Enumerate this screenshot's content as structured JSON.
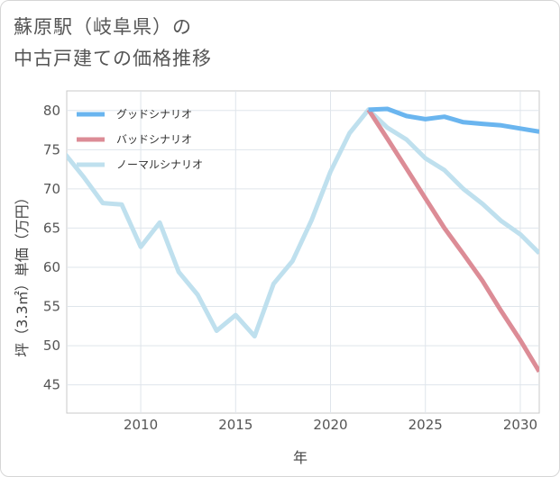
{
  "title": {
    "line1": "蘇原駅（岐阜県）の",
    "line2": "中古戸建ての価格推移"
  },
  "chart_data": {
    "type": "line",
    "title": "蘇原駅（岐阜県）の中古戸建ての価格推移",
    "xlabel": "年",
    "ylabel": "坪（3.3㎡）単価（万円）",
    "xlim": [
      2006.1,
      2031
    ],
    "ylim": [
      41.4,
      82.5
    ],
    "xticks": [
      2010,
      2015,
      2020,
      2025,
      2030
    ],
    "yticks": [
      45,
      50,
      55,
      60,
      65,
      70,
      75,
      80
    ],
    "grid": true,
    "legend_position": "top-left",
    "series": [
      {
        "name": "グッドシナリオ",
        "color": "#6ab5ef",
        "x": [
          2022,
          2023,
          2024,
          2025,
          2026,
          2027,
          2028,
          2029,
          2030,
          2031
        ],
        "values": [
          80.1,
          80.2,
          79.3,
          78.9,
          79.2,
          78.5,
          78.3,
          78.1,
          77.7,
          77.3
        ]
      },
      {
        "name": "バッドシナリオ",
        "color": "#dc8c96",
        "x": [
          2022,
          2023,
          2024,
          2025,
          2026,
          2027,
          2028,
          2029,
          2030,
          2031
        ],
        "values": [
          80.1,
          76.4,
          72.6,
          68.8,
          65.0,
          61.7,
          58.3,
          54.4,
          50.7,
          46.7
        ]
      },
      {
        "name": "ノーマルシナリオ",
        "color": "#bfe0ee",
        "x": [
          2006,
          2007,
          2008,
          2009,
          2010,
          2011,
          2012,
          2013,
          2014,
          2015,
          2016,
          2017,
          2018,
          2019,
          2020,
          2021,
          2022,
          2023,
          2024,
          2025,
          2026,
          2027,
          2028,
          2029,
          2030,
          2031
        ],
        "values": [
          74.5,
          71.5,
          68.2,
          68.0,
          62.6,
          65.7,
          59.4,
          56.5,
          51.9,
          53.9,
          51.2,
          57.9,
          60.8,
          66.0,
          72.2,
          77.1,
          80.1,
          77.8,
          76.3,
          73.9,
          72.4,
          70.0,
          68.1,
          65.9,
          64.2,
          61.8
        ]
      }
    ]
  }
}
